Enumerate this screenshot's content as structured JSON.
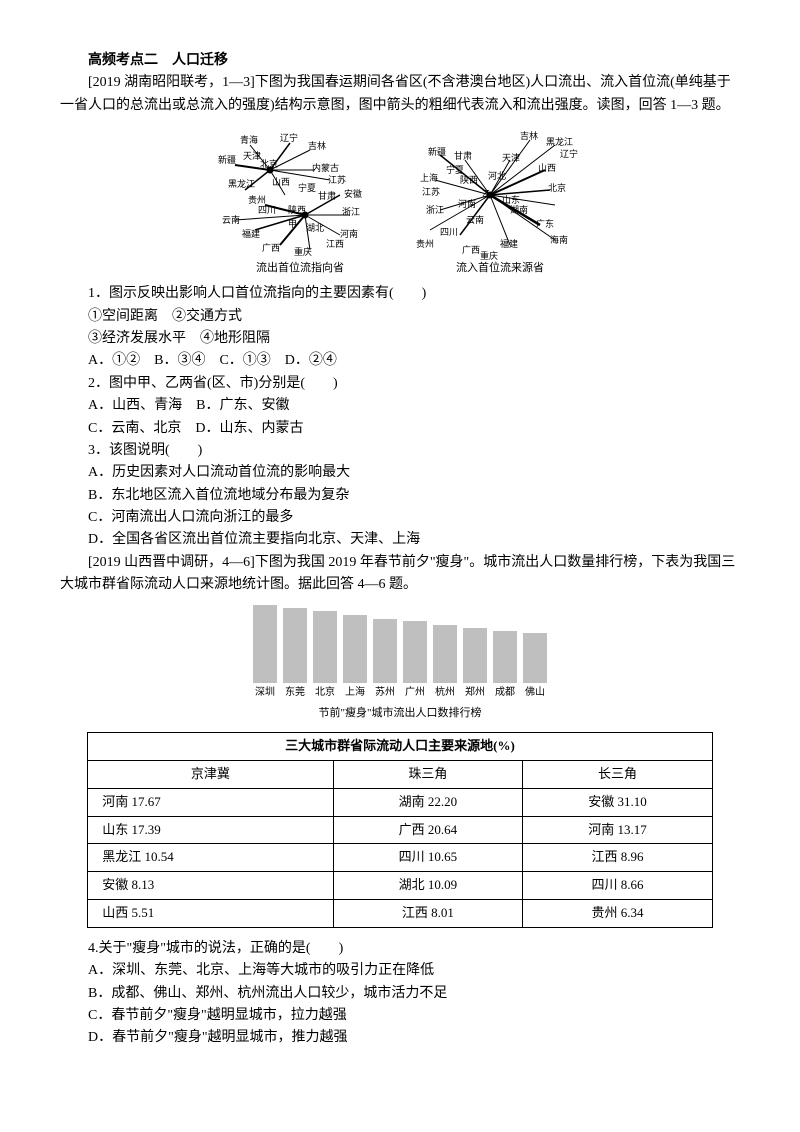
{
  "title": "高频考点二　人口迁移",
  "intro": "[2019 湖南昭阳联考，1—3]下图为我国春运期间各省区(不含港澳台地区)人口流出、流入首位流(单纯基于一省人口的总流出或总流入的强度)结构示意图，图中箭头的粗细代表流入和流出强度。读图，回答 1—3 题。",
  "diagram1": {
    "caption": "流出首位流指向省",
    "labels": [
      "青海",
      "新疆",
      "辽宁",
      "吉林",
      "天津",
      "北京",
      "内蒙古",
      "黑龙江",
      "山西",
      "江苏",
      "宁夏",
      "甘肃",
      "安徽",
      "浙江",
      "贵州",
      "四川",
      "陕西",
      "湖北",
      "河南",
      "云南",
      "甲",
      "江西",
      "福建",
      "广西",
      "重庆"
    ]
  },
  "diagram2": {
    "caption": "流入首位流来源省",
    "labels": [
      "吉林",
      "黑龙江",
      "新疆",
      "甘肃",
      "辽宁",
      "宁夏",
      "天津",
      "上海",
      "陕西",
      "河北",
      "山西",
      "江苏",
      "乙",
      "北京",
      "河南",
      "湖南",
      "浙江",
      "云南",
      "广东",
      "四川",
      "贵州",
      "福建",
      "海南",
      "广西",
      "重庆"
    ]
  },
  "q1": {
    "stem": "1．图示反映出影响人口首位流指向的主要因素有(　　)",
    "opts": "①空间距离　②交通方式",
    "opts2": "③经济发展水平　④地形阻隔",
    "choices": "A．①②　B．③④　C．①③　D．②④"
  },
  "q2": {
    "stem": "2．图中甲、乙两省(区、市)分别是(　　)",
    "a": "A．山西、青海　B．广东、安徽",
    "b": "C．云南、北京　D．山东、内蒙古"
  },
  "q3": {
    "stem": "3．该图说明(　　)",
    "a": "A．历史因素对人口流动首位流的影响最大",
    "b": "B．东北地区流入首位流地域分布最为复杂",
    "c": "C．河南流出人口流向浙江的最多",
    "d": "D．全国各省区流出首位流主要指向北京、天津、上海"
  },
  "intro2": "[2019 山西晋中调研，4—6]下图为我国 2019 年春节前夕\"瘦身\"。城市流出人口数量排行榜，下表为我国三大城市群省际流动人口来源地统计图。据此回答 4—6 题。",
  "chart": {
    "values": [
      78,
      75,
      72,
      68,
      64,
      62,
      58,
      55,
      52,
      50
    ],
    "labels": [
      "深圳",
      "东莞",
      "北京",
      "上海",
      "苏州",
      "广州",
      "杭州",
      "郑州",
      "成都",
      "佛山"
    ],
    "caption": "节前\"瘦身\"城市流出人口数排行榜",
    "bar_color": "#bfbfbf"
  },
  "table": {
    "header": "三大城市群省际流动人口主要来源地(%)",
    "cols": [
      "京津冀",
      "珠三角",
      "长三角"
    ],
    "rows": [
      [
        "河南 17.67",
        "湖南 22.20",
        "安徽 31.10"
      ],
      [
        "山东 17.39",
        "广西 20.64",
        "河南 13.17"
      ],
      [
        "黑龙江 10.54",
        "四川 10.65",
        "江西 8.96"
      ],
      [
        "安徽 8.13",
        "湖北 10.09",
        "四川 8.66"
      ],
      [
        "山西 5.51",
        "江西 8.01",
        "贵州 6.34"
      ]
    ]
  },
  "q4": {
    "stem": "4.关于\"瘦身\"城市的说法，正确的是(　　)",
    "a": "A．深圳、东莞、北京、上海等大城市的吸引力正在降低",
    "b": "B．成都、佛山、郑州、杭州流出人口较少，城市活力不足",
    "c": "C．春节前夕\"瘦身\"越明显城市，拉力越强",
    "d": "D．春节前夕\"瘦身\"越明显城市，推力越强"
  }
}
